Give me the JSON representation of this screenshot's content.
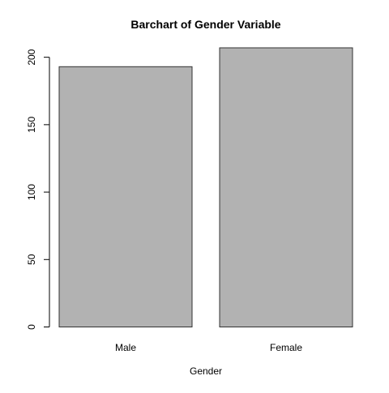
{
  "chart_data": {
    "type": "bar",
    "title": "Barchart of Gender Variable",
    "xlabel": "Gender",
    "ylabel": "",
    "categories": [
      "Male",
      "Female"
    ],
    "values": [
      193,
      207
    ],
    "ylim": [
      0,
      207
    ],
    "yticks": [
      0,
      50,
      100,
      150,
      200
    ],
    "ytick_labels": [
      "0",
      "50",
      "100",
      "150",
      "200"
    ],
    "grid": false,
    "legend": "none",
    "bar_color": "#b2b2b2",
    "bar_edge_color": "#333333"
  }
}
